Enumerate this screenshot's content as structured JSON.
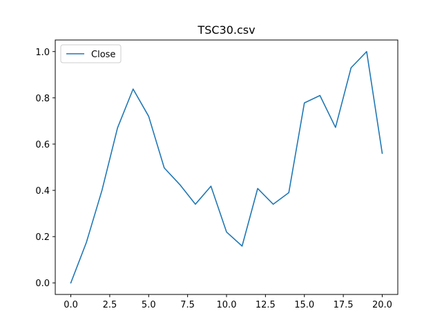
{
  "chart_data": {
    "type": "line",
    "title": "TSC30.csv",
    "xlabel": "",
    "ylabel": "",
    "xlim": [
      -1.0,
      21.0
    ],
    "ylim": [
      -0.05,
      1.05
    ],
    "x_ticks": [
      0.0,
      2.5,
      5.0,
      7.5,
      10.0,
      12.5,
      15.0,
      17.5,
      20.0
    ],
    "x_tick_labels": [
      "0.0",
      "2.5",
      "5.0",
      "7.5",
      "10.0",
      "12.5",
      "15.0",
      "17.5",
      "20.0"
    ],
    "y_ticks": [
      0.0,
      0.2,
      0.4,
      0.6,
      0.8,
      1.0
    ],
    "y_tick_labels": [
      "0.0",
      "0.2",
      "0.4",
      "0.6",
      "0.8",
      "1.0"
    ],
    "grid": false,
    "legend": {
      "placement": "upper-left",
      "entries": [
        "Close"
      ]
    },
    "series": [
      {
        "name": "Close",
        "color": "#1f77b4",
        "x": [
          0,
          1,
          2,
          3,
          4,
          5,
          6,
          7,
          8,
          9,
          10,
          11,
          12,
          13,
          14,
          15,
          16,
          17,
          18,
          19,
          20
        ],
        "values": [
          0.0,
          0.175,
          0.4,
          0.67,
          0.838,
          0.72,
          0.497,
          0.425,
          0.34,
          0.418,
          0.22,
          0.159,
          0.408,
          0.34,
          0.39,
          0.778,
          0.81,
          0.672,
          0.93,
          1.0,
          0.56
        ]
      }
    ]
  }
}
